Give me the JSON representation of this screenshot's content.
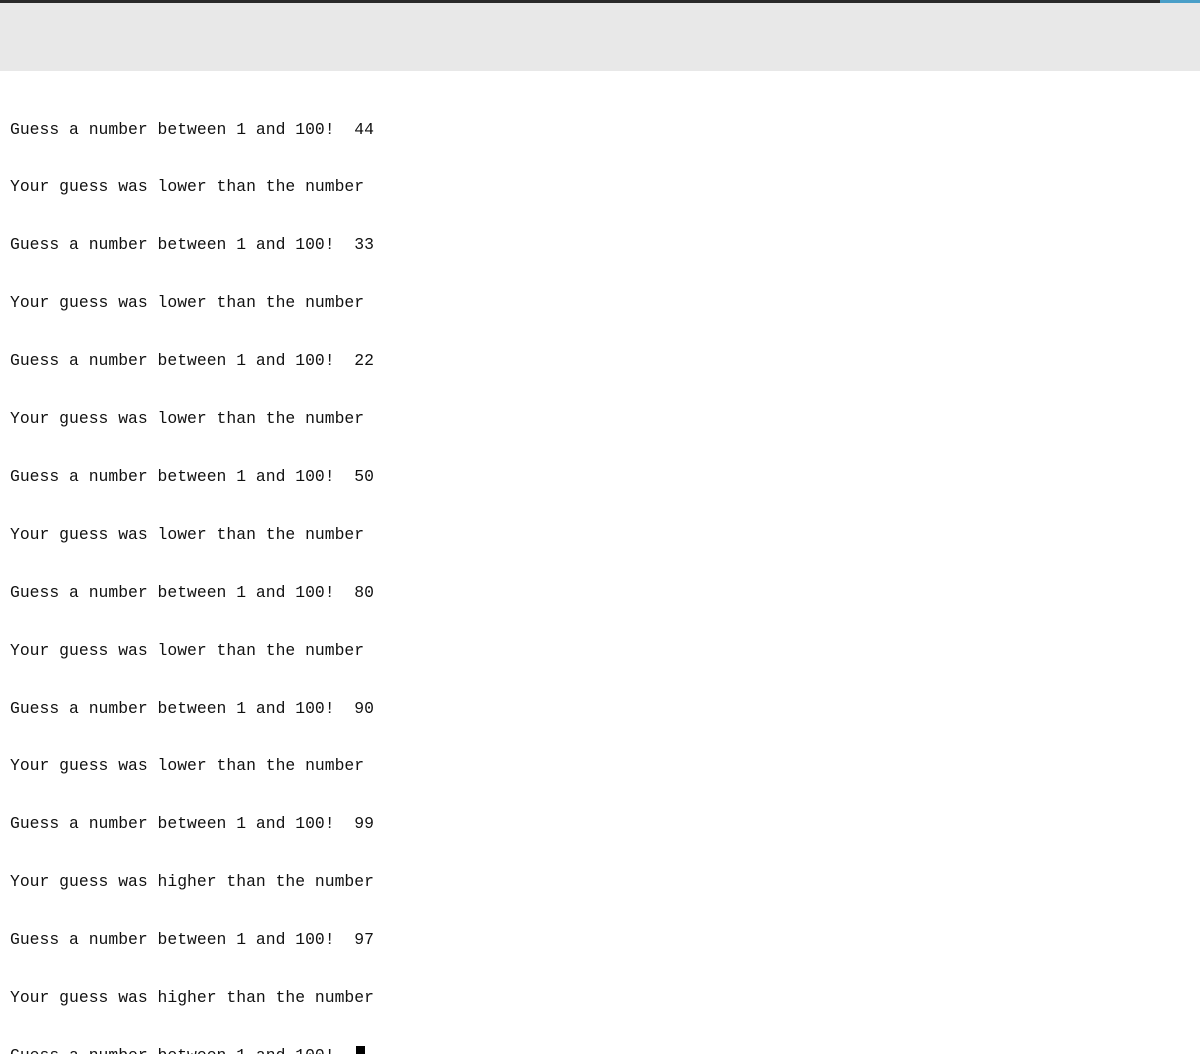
{
  "console": {
    "lines": [
      "Guess a number between 1 and 100!  44",
      "Your guess was lower than the number",
      "Guess a number between 1 and 100!  33",
      "Your guess was lower than the number",
      "Guess a number between 1 and 100!  22",
      "Your guess was lower than the number",
      "Guess a number between 1 and 100!  50",
      "Your guess was lower than the number",
      "Guess a number between 1 and 100!  80",
      "Your guess was lower than the number",
      "Guess a number between 1 and 100!  90",
      "Your guess was lower than the number",
      "Guess a number between 1 and 100!  99",
      "Your guess was higher than the number",
      "Guess a number between 1 and 100!  97",
      "Your guess was higher than the number"
    ],
    "prompt": "Guess a number between 1 and 100!  ",
    "input_value": ""
  }
}
